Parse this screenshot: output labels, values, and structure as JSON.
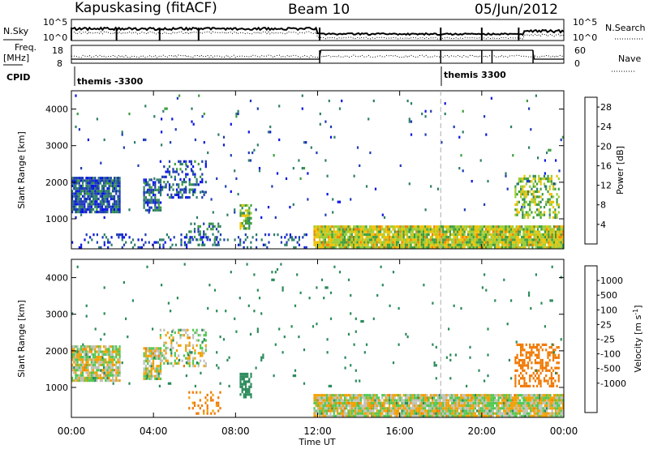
{
  "header": {
    "station": "Kapuskasing (fitACF)",
    "beam": "Beam 10",
    "date": "05/Jun/2012"
  },
  "top_panels": {
    "nsky_label": "N.Sky",
    "nsky_ticks": [
      "10^5",
      "10^0"
    ],
    "nsearch_label": "N.Search",
    "nsearch_ticks": [
      "10^5",
      "10^0"
    ],
    "freq_label_1": "Freq.",
    "freq_label_2": "[MHz]",
    "freq_ticks": [
      "18",
      "8"
    ],
    "nave_label": "Nave",
    "nave_ticks": [
      "60",
      "0"
    ],
    "cpid_label": "CPID",
    "cpid_segments": [
      {
        "label": "themis -3300",
        "start_hour": 0.0
      },
      {
        "label": "themis 3300",
        "start_hour": 18.0
      }
    ]
  },
  "colors": {
    "power_scale": [
      "#0a14e6",
      "#1e3cb4",
      "#2e7d6a",
      "#3c9c3c",
      "#9acd32",
      "#f0c000",
      "#f08000",
      "#e64000",
      "#e60000"
    ],
    "velocity_scale": [
      "#e60000",
      "#f04000",
      "#f07800",
      "#f0a000",
      "#c8c8c0",
      "#c8c8c0",
      "#50c850",
      "#2a8a5a",
      "#1e50b4",
      "#0a14e6"
    ],
    "ground_scatter": "#c0c0b8"
  },
  "x_axis": {
    "label": "Time UT",
    "ticks": [
      "00:00",
      "04:00",
      "08:00",
      "12:00",
      "16:00",
      "20:00",
      "00:00"
    ]
  },
  "chart_data": [
    {
      "type": "heatmap",
      "title": "",
      "xlabel": "Time UT",
      "ylabel": "Slant Range [km]",
      "x_range_hours": [
        0,
        24
      ],
      "ylim": [
        180,
        4500
      ],
      "yticks": [
        "1000",
        "2000",
        "3000",
        "4000"
      ],
      "colorbar_label": "Power [dB]",
      "colorbar_ticks": [
        "4",
        "8",
        "12",
        "16",
        "20",
        "24",
        "28"
      ],
      "colorbar_range": [
        0,
        30
      ],
      "dashed_marker_hour": 18.0,
      "regions": [
        {
          "t0": 0.0,
          "t1": 2.4,
          "r0": 1150,
          "r1": 2150,
          "density": 0.85,
          "value": 6
        },
        {
          "t0": 3.5,
          "t1": 4.4,
          "r0": 1200,
          "r1": 2100,
          "density": 0.7,
          "value": 7
        },
        {
          "t0": 4.3,
          "t1": 6.6,
          "r0": 1550,
          "r1": 2600,
          "density": 0.35,
          "value": 6
        },
        {
          "t0": 5.7,
          "t1": 7.3,
          "r0": 250,
          "r1": 900,
          "density": 0.25,
          "value": 8
        },
        {
          "t0": 8.2,
          "t1": 8.8,
          "r0": 700,
          "r1": 1400,
          "density": 0.7,
          "value": 14
        },
        {
          "t0": 0.0,
          "t1": 11.5,
          "r0": 180,
          "r1": 600,
          "density": 0.2,
          "value": 5
        },
        {
          "t0": 11.8,
          "t1": 24.0,
          "r0": 180,
          "r1": 820,
          "density": 0.95,
          "value": 16
        },
        {
          "t0": 21.6,
          "t1": 23.8,
          "r0": 1000,
          "r1": 2200,
          "density": 0.45,
          "value": 14
        },
        {
          "t0": 0.0,
          "t1": 24.0,
          "r0": 1000,
          "r1": 4400,
          "density": 0.015,
          "value": 6
        }
      ]
    },
    {
      "type": "heatmap",
      "title": "",
      "xlabel": "Time UT",
      "ylabel": "Slant Range [km]",
      "x_range_hours": [
        0,
        24
      ],
      "ylim": [
        180,
        4500
      ],
      "yticks": [
        "1000",
        "2000",
        "3000",
        "4000"
      ],
      "colorbar_label": "Velocity [m s^-1]",
      "colorbar_ticks": [
        "1000",
        "500",
        "100",
        "25",
        "-25",
        "-100",
        "-500",
        "-1000"
      ],
      "dashed_marker_hour": 18.0,
      "regions": [
        {
          "t0": 0.0,
          "t1": 2.4,
          "r0": 1150,
          "r1": 2150,
          "density": 0.85,
          "value": 0
        },
        {
          "t0": 3.5,
          "t1": 4.4,
          "r0": 1200,
          "r1": 2100,
          "density": 0.7,
          "value": 0
        },
        {
          "t0": 4.3,
          "t1": 6.6,
          "r0": 1550,
          "r1": 2600,
          "density": 0.35,
          "value": 0
        },
        {
          "t0": 5.7,
          "t1": 7.3,
          "r0": 250,
          "r1": 900,
          "density": 0.25,
          "value": -150
        },
        {
          "t0": 8.2,
          "t1": 8.8,
          "r0": 700,
          "r1": 1400,
          "density": 0.7,
          "value": 200
        },
        {
          "t0": 11.8,
          "t1": 24.0,
          "r0": 180,
          "r1": 820,
          "density": 0.95,
          "value": 0
        },
        {
          "t0": 21.6,
          "t1": 23.8,
          "r0": 1000,
          "r1": 2200,
          "density": 0.45,
          "value": -200
        },
        {
          "t0": 0.0,
          "t1": 24.0,
          "r0": 1000,
          "r1": 4400,
          "density": 0.015,
          "value": 300
        }
      ]
    }
  ]
}
